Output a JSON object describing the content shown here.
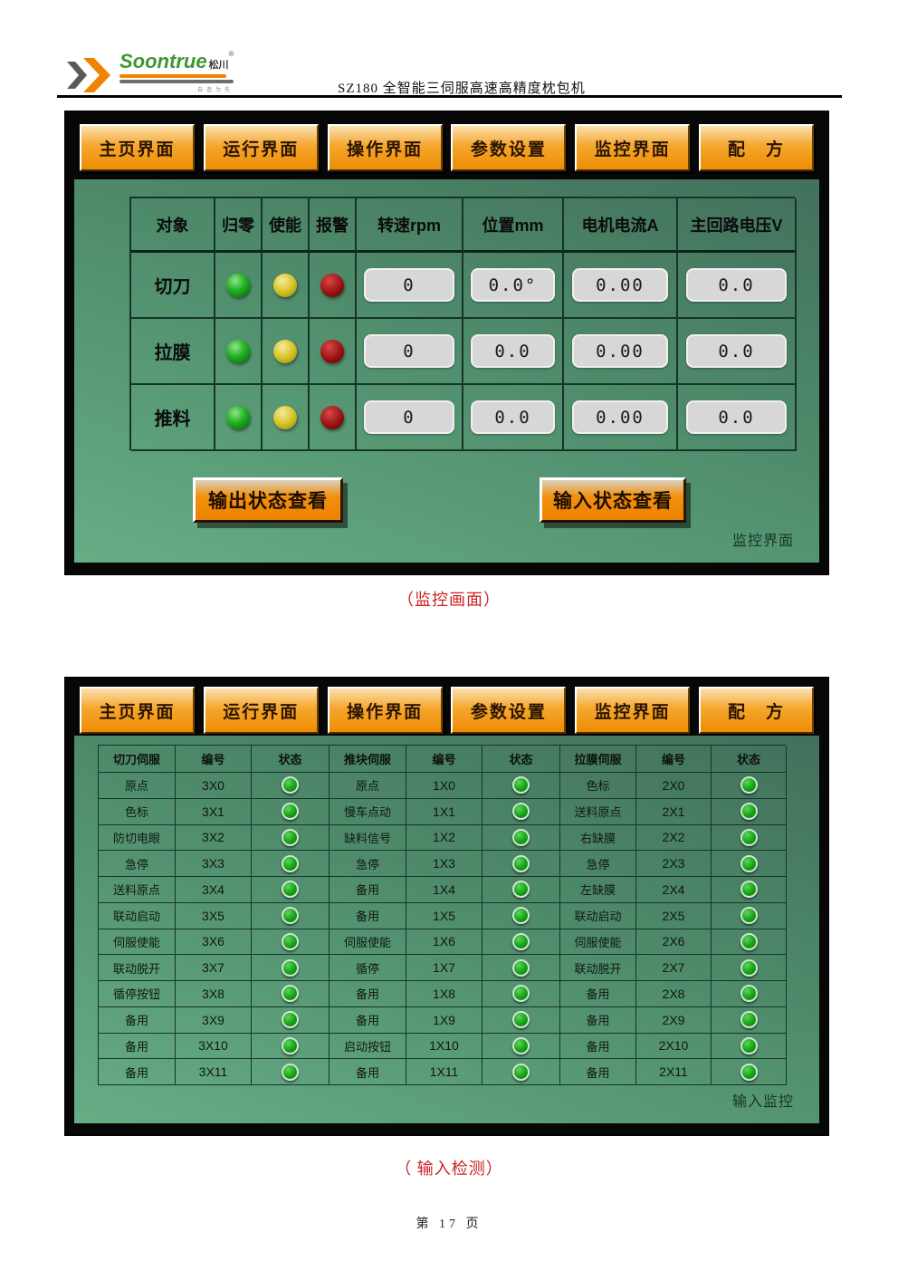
{
  "header": {
    "brand": "Soontrue",
    "brand_cn": "松川",
    "reg": "®",
    "tagline": "自造为先",
    "title": "SZ180  全智能三伺服高速高精度枕包机"
  },
  "nav": [
    "主页界面",
    "运行界面",
    "操作界面",
    "参数设置",
    "监控界面",
    "配　方"
  ],
  "monitor_screen": {
    "columns": [
      "对象",
      "归零",
      "使能",
      "报警",
      "转速rpm",
      "位置mm",
      "电机电流A",
      "主回路电压V"
    ],
    "lights": [
      "green",
      "yellow",
      "red"
    ],
    "rows": [
      {
        "label": "切刀",
        "values": [
          "0",
          "0.0°",
          "0.00",
          "0.0"
        ]
      },
      {
        "label": "拉膜",
        "values": [
          "0",
          "0.0",
          "0.00",
          "0.0"
        ]
      },
      {
        "label": "推料",
        "values": [
          "0",
          "0.0",
          "0.00",
          "0.0"
        ]
      }
    ],
    "buttons": {
      "output": "输出状态查看",
      "input": "输入状态查看"
    },
    "screen_label": "监控界面"
  },
  "input_screen": {
    "groups": [
      {
        "header": [
          "切刀伺服",
          "编号",
          "状态"
        ],
        "rows": [
          [
            "原点",
            "3X0"
          ],
          [
            "色标",
            "3X1"
          ],
          [
            "防切电眼",
            "3X2"
          ],
          [
            "急停",
            "3X3"
          ],
          [
            "送料原点",
            "3X4"
          ],
          [
            "联动启动",
            "3X5"
          ],
          [
            "伺服使能",
            "3X6"
          ],
          [
            "联动脱开",
            "3X7"
          ],
          [
            "循停按钮",
            "3X8"
          ],
          [
            "备用",
            "3X9"
          ],
          [
            "备用",
            "3X10"
          ],
          [
            "备用",
            "3X11"
          ]
        ]
      },
      {
        "header": [
          "推块伺服",
          "编号",
          "状态"
        ],
        "rows": [
          [
            "原点",
            "1X0"
          ],
          [
            "慢车点动",
            "1X1"
          ],
          [
            "缺料信号",
            "1X2"
          ],
          [
            "急停",
            "1X3"
          ],
          [
            "备用",
            "1X4"
          ],
          [
            "备用",
            "1X5"
          ],
          [
            "伺服使能",
            "1X6"
          ],
          [
            "循停",
            "1X7"
          ],
          [
            "备用",
            "1X8"
          ],
          [
            "备用",
            "1X9"
          ],
          [
            "启动按钮",
            "1X10"
          ],
          [
            "备用",
            "1X11"
          ]
        ]
      },
      {
        "header": [
          "拉膜伺服",
          "编号",
          "状态"
        ],
        "rows": [
          [
            "色标",
            "2X0"
          ],
          [
            "送料原点",
            "2X1"
          ],
          [
            "右缺膜",
            "2X2"
          ],
          [
            "急停",
            "2X3"
          ],
          [
            "左缺膜",
            "2X4"
          ],
          [
            "联动启动",
            "2X5"
          ],
          [
            "伺服使能",
            "2X6"
          ],
          [
            "联动脱开",
            "2X7"
          ],
          [
            "备用",
            "2X8"
          ],
          [
            "备用",
            "2X9"
          ],
          [
            "备用",
            "2X10"
          ],
          [
            "备用",
            "2X11"
          ]
        ]
      }
    ],
    "screen_label": "输入监控"
  },
  "captions": {
    "monitor": "（监控画面）",
    "input": "（ 输入检测）"
  },
  "footer": "第 17 页",
  "colors": {
    "button_orange": "#f09a28",
    "screen_green": "#549570",
    "led_green": "#1faf1f",
    "led_yellow": "#d6c329",
    "led_red": "#9c1212",
    "caption_red": "#cc2222",
    "brand_green": "#3f9632",
    "logo_orange": "#f08300"
  }
}
